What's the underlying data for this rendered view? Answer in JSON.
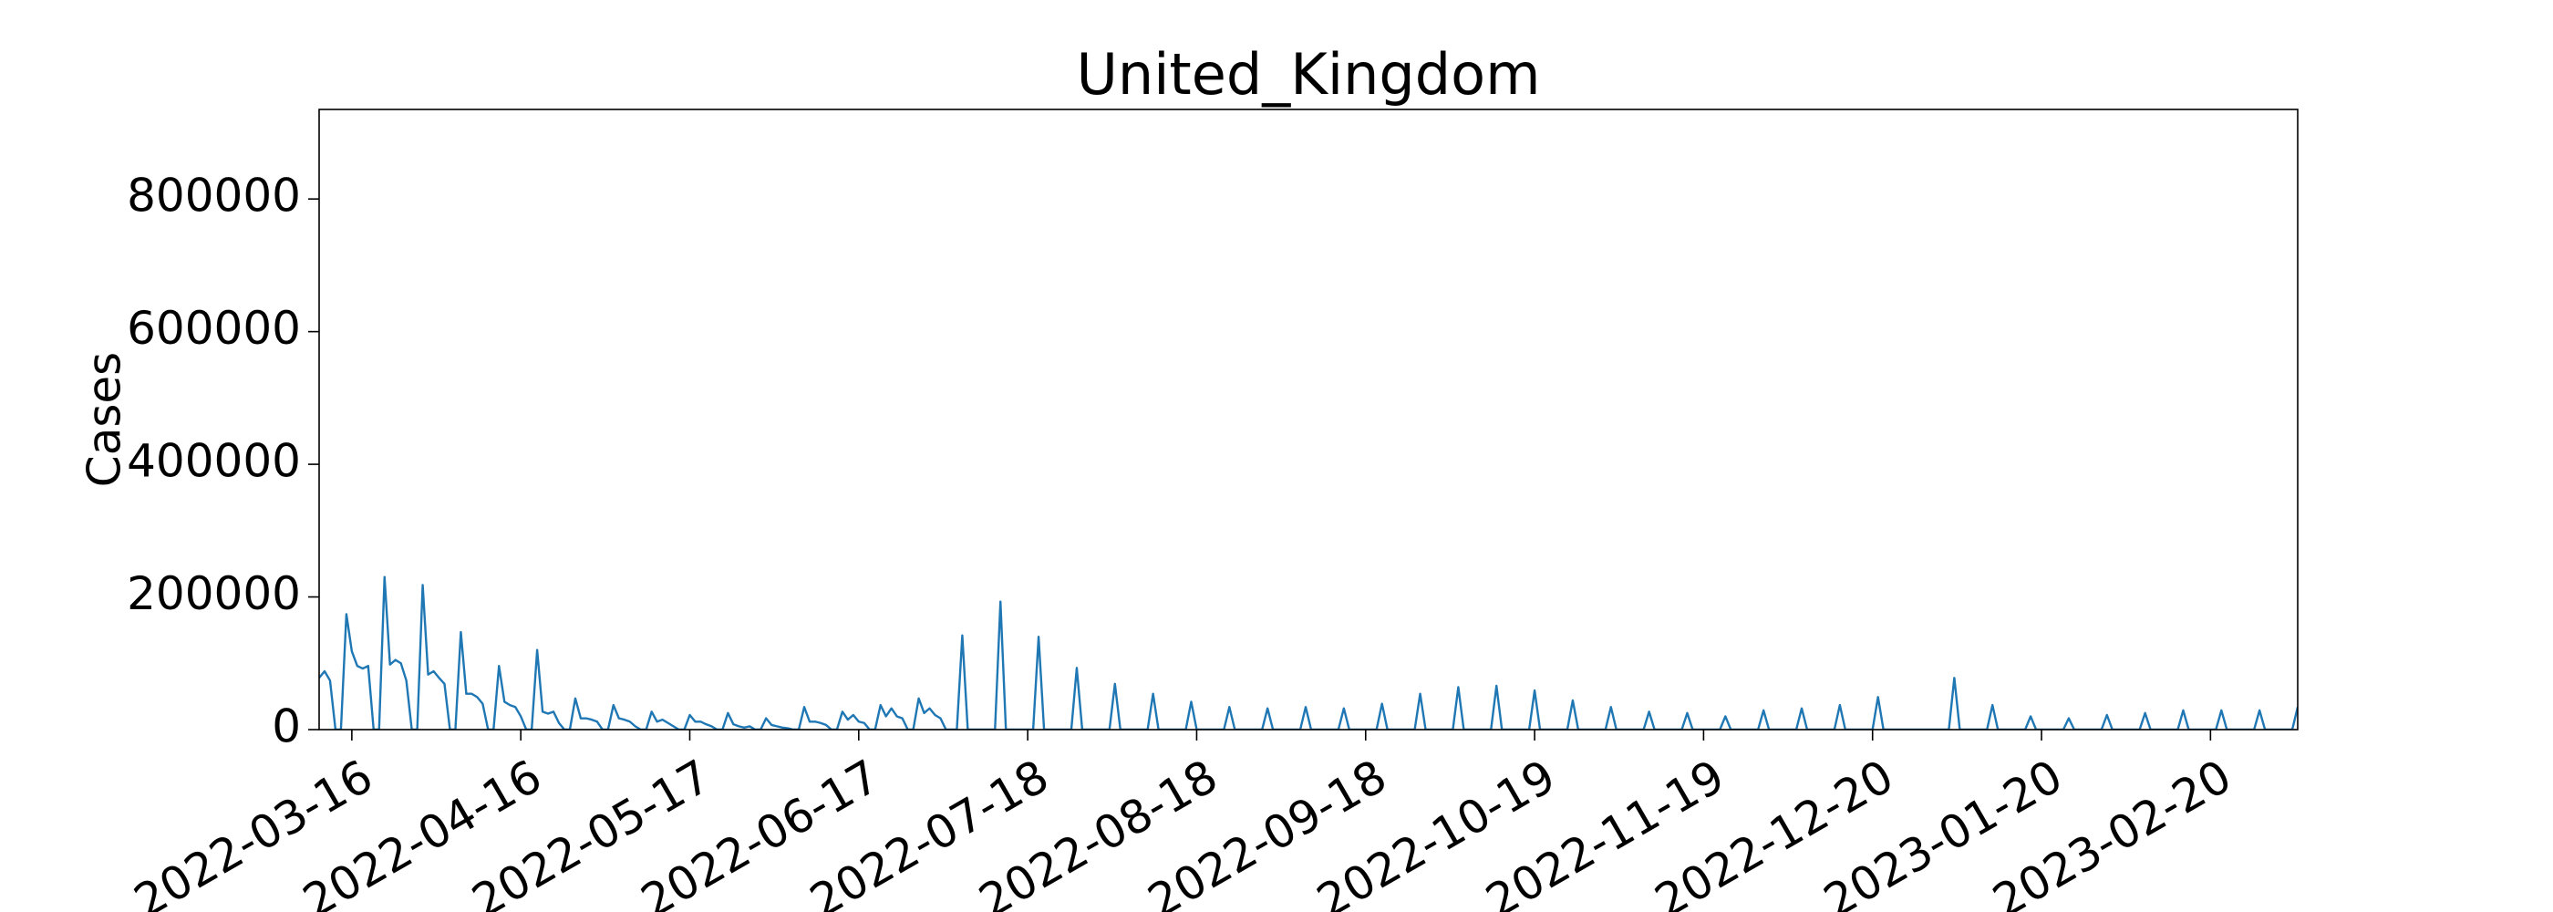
{
  "chart_data": {
    "type": "line",
    "title": "United_Kingdom",
    "ylabel": "Cases",
    "color": "#1f77b4",
    "xlim": [
      "2022-03-10",
      "2023-03-08"
    ],
    "xticks": [
      "2022-03-16",
      "2022-04-16",
      "2022-05-17",
      "2022-06-17",
      "2022-07-18",
      "2022-08-18",
      "2022-09-18",
      "2022-10-19",
      "2022-11-19",
      "2022-12-20",
      "2023-01-20",
      "2023-02-20"
    ],
    "ylim": [
      0,
      935000
    ],
    "yticks": [
      0,
      200000,
      400000,
      600000,
      800000
    ],
    "x": [
      "2022-03-10",
      "2022-03-11",
      "2022-03-12",
      "2022-03-13",
      "2022-03-14",
      "2022-03-15",
      "2022-03-16",
      "2022-03-17",
      "2022-03-18",
      "2022-03-19",
      "2022-03-20",
      "2022-03-21",
      "2022-03-22",
      "2022-03-23",
      "2022-03-24",
      "2022-03-25",
      "2022-03-26",
      "2022-03-27",
      "2022-03-28",
      "2022-03-29",
      "2022-03-30",
      "2022-03-31",
      "2022-04-01",
      "2022-04-02",
      "2022-04-03",
      "2022-04-04",
      "2022-04-05",
      "2022-04-06",
      "2022-04-07",
      "2022-04-08",
      "2022-04-09",
      "2022-04-10",
      "2022-04-11",
      "2022-04-12",
      "2022-04-13",
      "2022-04-14",
      "2022-04-15",
      "2022-04-16",
      "2022-04-17",
      "2022-04-18",
      "2022-04-19",
      "2022-04-20",
      "2022-04-21",
      "2022-04-22",
      "2022-04-23",
      "2022-04-24",
      "2022-04-25",
      "2022-04-26",
      "2022-04-27",
      "2022-04-28",
      "2022-04-29",
      "2022-04-30",
      "2022-05-01",
      "2022-05-02",
      "2022-05-03",
      "2022-05-04",
      "2022-05-05",
      "2022-05-06",
      "2022-05-07",
      "2022-05-08",
      "2022-05-09",
      "2022-05-10",
      "2022-05-11",
      "2022-05-12",
      "2022-05-13",
      "2022-05-14",
      "2022-05-15",
      "2022-05-16",
      "2022-05-17",
      "2022-05-18",
      "2022-05-19",
      "2022-05-20",
      "2022-05-21",
      "2022-05-22",
      "2022-05-23",
      "2022-05-24",
      "2022-05-25",
      "2022-05-26",
      "2022-05-27",
      "2022-05-28",
      "2022-05-29",
      "2022-05-30",
      "2022-05-31",
      "2022-06-01",
      "2022-06-02",
      "2022-06-03",
      "2022-06-04",
      "2022-06-05",
      "2022-06-06",
      "2022-06-07",
      "2022-06-08",
      "2022-06-09",
      "2022-06-10",
      "2022-06-11",
      "2022-06-12",
      "2022-06-13",
      "2022-06-14",
      "2022-06-15",
      "2022-06-16",
      "2022-06-17",
      "2022-06-18",
      "2022-06-19",
      "2022-06-20",
      "2022-06-21",
      "2022-06-22",
      "2022-06-23",
      "2022-06-24",
      "2022-06-25",
      "2022-06-26",
      "2022-06-27",
      "2022-06-28",
      "2022-06-29",
      "2022-06-30",
      "2022-07-01",
      "2022-07-02",
      "2022-07-03",
      "2022-07-04",
      "2022-07-05",
      "2022-07-06",
      "2022-07-07",
      "2022-07-12",
      "2022-07-13",
      "2022-07-14",
      "2022-07-19",
      "2022-07-20",
      "2022-07-21",
      "2022-07-26",
      "2022-07-27",
      "2022-07-28",
      "2022-08-02",
      "2022-08-03",
      "2022-08-04",
      "2022-08-09",
      "2022-08-10",
      "2022-08-11",
      "2022-08-16",
      "2022-08-17",
      "2022-08-18",
      "2022-08-23",
      "2022-08-24",
      "2022-08-25",
      "2022-08-30",
      "2022-08-31",
      "2022-09-01",
      "2022-09-06",
      "2022-09-07",
      "2022-09-08",
      "2022-09-13",
      "2022-09-14",
      "2022-09-15",
      "2022-09-20",
      "2022-09-21",
      "2022-09-22",
      "2022-09-27",
      "2022-09-28",
      "2022-09-29",
      "2022-10-04",
      "2022-10-05",
      "2022-10-06",
      "2022-10-11",
      "2022-10-12",
      "2022-10-13",
      "2022-10-18",
      "2022-10-19",
      "2022-10-20",
      "2022-10-25",
      "2022-10-26",
      "2022-10-27",
      "2022-11-01",
      "2022-11-02",
      "2022-11-03",
      "2022-11-08",
      "2022-11-09",
      "2022-11-10",
      "2022-11-15",
      "2022-11-16",
      "2022-11-17",
      "2022-11-22",
      "2022-11-23",
      "2022-11-24",
      "2022-11-29",
      "2022-11-30",
      "2022-12-01",
      "2022-12-06",
      "2022-12-07",
      "2022-12-08",
      "2022-12-13",
      "2022-12-14",
      "2022-12-15",
      "2022-12-20",
      "2022-12-21",
      "2022-12-22",
      "2023-01-03",
      "2023-01-04",
      "2023-01-05",
      "2023-01-10",
      "2023-01-11",
      "2023-01-12",
      "2023-01-17",
      "2023-01-18",
      "2023-01-19",
      "2023-01-24",
      "2023-01-25",
      "2023-01-26",
      "2023-01-31",
      "2023-02-01",
      "2023-02-02",
      "2023-02-07",
      "2023-02-08",
      "2023-02-09",
      "2023-02-14",
      "2023-02-15",
      "2023-02-16",
      "2023-02-21",
      "2023-02-22",
      "2023-02-23",
      "2023-02-28",
      "2023-03-01",
      "2023-03-02",
      "2023-03-07",
      "2023-03-08"
    ],
    "values": [
      78000,
      88000,
      74000,
      0,
      0,
      174000,
      118000,
      96000,
      92000,
      96000,
      0,
      0,
      230000,
      98000,
      105000,
      100000,
      74000,
      0,
      0,
      218000,
      83000,
      88000,
      78000,
      69000,
      0,
      0,
      147000,
      54000,
      54000,
      49000,
      39000,
      0,
      0,
      96000,
      42000,
      37000,
      34000,
      20000,
      0,
      0,
      120000,
      27000,
      24000,
      27000,
      10000,
      0,
      0,
      47000,
      17000,
      17000,
      15000,
      12000,
      0,
      0,
      37000,
      17000,
      15000,
      12000,
      5000,
      0,
      0,
      27000,
      12000,
      15000,
      10000,
      5000,
      0,
      0,
      22000,
      12000,
      12000,
      8000,
      5000,
      0,
      0,
      25000,
      8000,
      5000,
      3000,
      5000,
      0,
      0,
      17000,
      7000,
      5000,
      3000,
      2000,
      0,
      0,
      34000,
      12000,
      12000,
      10000,
      7000,
      0,
      0,
      27000,
      15000,
      22000,
      12000,
      10000,
      0,
      0,
      37000,
      20000,
      32000,
      20000,
      17000,
      0,
      0,
      47000,
      25000,
      32000,
      22000,
      17000,
      0,
      0,
      0,
      142000,
      0,
      0,
      193000,
      0,
      0,
      140000,
      0,
      0,
      93000,
      0,
      0,
      69000,
      0,
      0,
      54000,
      0,
      0,
      42000,
      0,
      0,
      34000,
      0,
      0,
      32000,
      0,
      0,
      34000,
      0,
      0,
      32000,
      0,
      0,
      39000,
      0,
      0,
      54000,
      0,
      0,
      64000,
      0,
      0,
      66000,
      0,
      0,
      59000,
      0,
      0,
      44000,
      0,
      0,
      34000,
      0,
      0,
      27000,
      0,
      0,
      25000,
      0,
      0,
      20000,
      0,
      0,
      29000,
      0,
      0,
      32000,
      0,
      0,
      37000,
      0,
      0,
      49000,
      0,
      0,
      78000,
      0,
      0,
      37000,
      0,
      0,
      20000,
      0,
      0,
      17000,
      0,
      0,
      22000,
      0,
      0,
      25000,
      0,
      0,
      29000,
      0,
      0,
      29000,
      0,
      0,
      29000,
      0,
      0,
      34000
    ]
  }
}
